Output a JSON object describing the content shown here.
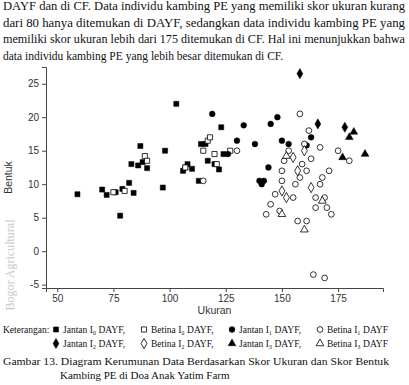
{
  "page": {
    "paragraph": [
      "DAYF  dan di CF.  Data individu kambing PE yang memiliki skor ukuran kurang",
      "dari 80 hanya ditemukan di DAYF, sedangkan data individu kambing PE yang",
      "memiliki skor ukuran lebih dari 175 ditemukan di CF. Hal ini menunjukkan bahwa",
      "data individu kambing PE yang lebih besar ditemukan di CF."
    ],
    "legend_label": "Keterangan:",
    "caption": [
      "Gambar 13.  Diagram Kerumunan Data Berdasarkan Skor Ukuran dan Skor Bentuk",
      "Kambing PE di Doa Anak Yatim Farm"
    ],
    "watermark": "Bogor Agricultural"
  },
  "chart_data": {
    "type": "scatter",
    "x_label": "Ukuran",
    "y_label": "Bentuk",
    "xlim": [
      45,
      195
    ],
    "xticks": [
      50,
      75,
      100,
      125,
      150,
      175
    ],
    "ylim": [
      -5.5,
      27.5
    ],
    "yticks": [
      -5,
      0,
      5,
      10,
      15,
      20,
      25
    ],
    "grid": false,
    "legend": "bottom",
    "series": [
      {
        "name": "Jantan I₀ DAYF,",
        "color": "#000000",
        "marker": "square",
        "x": [
          59,
          70,
          72,
          76,
          78,
          79,
          82,
          83,
          84,
          86,
          87,
          88,
          90,
          97,
          98,
          103,
          106,
          107,
          108,
          110,
          113,
          114,
          116,
          117,
          120,
          122,
          123,
          124
        ],
        "values": [
          8.5,
          9.2,
          8.4,
          8.8,
          5.3,
          9.3,
          10.2,
          13,
          8.7,
          12.8,
          15.7,
          13.3,
          12.4,
          9.5,
          15,
          22,
          12,
          12.5,
          13,
          12.3,
          10.5,
          16,
          16,
          13.5,
          13,
          12.2,
          18.5,
          14.5
        ]
      },
      {
        "name": "Betina I₀ DAYF,",
        "color": "#000000",
        "marker": "square-open",
        "x": [
          75,
          80,
          89,
          90,
          107,
          115,
          117,
          118,
          120,
          121,
          127
        ],
        "values": [
          8.8,
          9,
          14.2,
          13.5,
          12.5,
          15,
          16.5,
          17,
          14.5,
          13,
          15
        ]
      },
      {
        "name": "Jantan I₁ DAYF,",
        "color": "#000000",
        "marker": "circle",
        "x": [
          119,
          126,
          130,
          133,
          138,
          140,
          141,
          142,
          144,
          145,
          148,
          150,
          153,
          161,
          163
        ],
        "values": [
          20.5,
          14.5,
          16.5,
          18.8,
          16,
          10.5,
          10,
          10.5,
          12.5,
          19,
          20,
          16.5,
          16,
          15.8,
          17
        ]
      },
      {
        "name": "Betina I₁ DAYF",
        "color": "#000000",
        "marker": "circle-open",
        "x": [
          115,
          130,
          143,
          145,
          147,
          149,
          150,
          150,
          151,
          153,
          155,
          156,
          157,
          158,
          158,
          159,
          160,
          161,
          161,
          162,
          163,
          164,
          165,
          165,
          167,
          167,
          168,
          169,
          169,
          170,
          171,
          172,
          175,
          180
        ],
        "values": [
          10.5,
          15,
          5.5,
          7,
          8.5,
          6,
          12,
          10.5,
          13.5,
          15,
          8,
          10,
          4.5,
          11,
          20.5,
          13,
          16,
          4.5,
          12,
          18,
          13.8,
          -3.5,
          8,
          6.5,
          10,
          15.5,
          11,
          -4,
          8,
          6.5,
          12,
          5.5,
          15,
          13.5
        ]
      },
      {
        "name": "Jantan I₂ DAYF,",
        "color": "#000000",
        "marker": "diamond",
        "x": [
          158,
          166,
          178
        ],
        "values": [
          26.5,
          19,
          18.5
        ]
      },
      {
        "name": "Betina I₂ DAYF,",
        "color": "#000000",
        "marker": "diamond-open",
        "x": [
          150,
          152,
          155,
          157,
          160,
          163
        ],
        "values": [
          9,
          8,
          14,
          12,
          15,
          9.5
        ]
      },
      {
        "name": "Jantan I₃ DAYF,",
        "color": "#000000",
        "marker": "triangle",
        "x": [
          177,
          180,
          182,
          187
        ],
        "values": [
          14,
          17,
          17.8,
          14.5
        ]
      },
      {
        "name": "Betina I₃ DAYF",
        "color": "#000000",
        "marker": "triangle-open",
        "x": [
          150,
          152,
          160,
          168
        ],
        "values": [
          5.5,
          14.2,
          3.2,
          7.5
        ]
      }
    ]
  }
}
